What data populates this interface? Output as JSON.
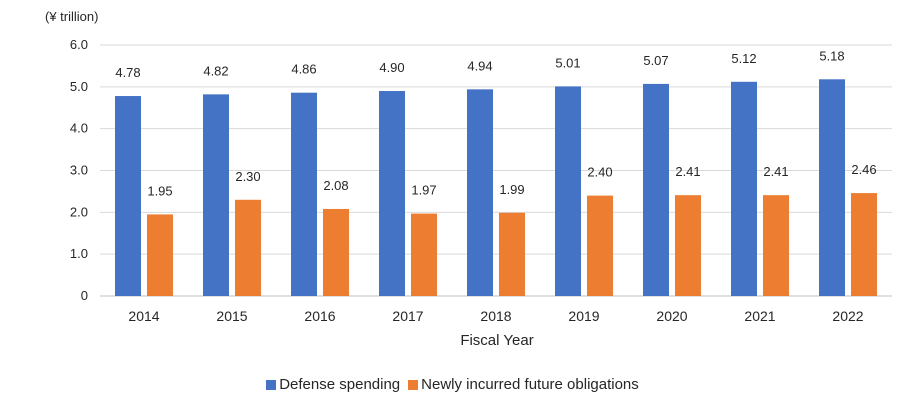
{
  "chart_data": {
    "type": "bar",
    "unit_label": "(¥ trillion)",
    "xlabel": "Fiscal Year",
    "ylabel": "",
    "categories": [
      "2014",
      "2015",
      "2016",
      "2017",
      "2018",
      "2019",
      "2020",
      "2021",
      "2022"
    ],
    "series": [
      {
        "name": "Defense spending",
        "color": "#4472C4",
        "values": [
          4.78,
          4.82,
          4.86,
          4.9,
          4.94,
          5.01,
          5.07,
          5.12,
          5.18
        ],
        "labels": [
          "4.78",
          "4.82",
          "4.86",
          "4.90",
          "4.94",
          "5.01",
          "5.07",
          "5.12",
          "5.18"
        ]
      },
      {
        "name": "Newly incurred future obligations",
        "color": "#ED7D31",
        "values": [
          1.95,
          2.3,
          2.08,
          1.97,
          1.99,
          2.4,
          2.41,
          2.41,
          2.46
        ],
        "labels": [
          "1.95",
          "2.30",
          "2.08",
          "1.97",
          "1.99",
          "2.40",
          "2.41",
          "2.41",
          "2.46"
        ]
      }
    ],
    "ylim": [
      0,
      6
    ],
    "yticks": [
      "0",
      "1.0",
      "2.0",
      "3.0",
      "4.0",
      "5.0",
      "6.0"
    ],
    "grid": true,
    "legend_position": "bottom"
  }
}
